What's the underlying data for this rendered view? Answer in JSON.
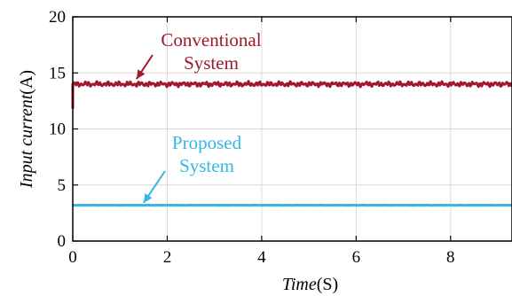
{
  "chart_data": {
    "type": "line",
    "title": "",
    "xlabel": {
      "var": "Time",
      "unit": "(S)"
    },
    "ylabel": {
      "var": "Input current",
      "unit": "(A)"
    },
    "xlim": [
      0,
      9.3
    ],
    "ylim": [
      0,
      20
    ],
    "xticks": [
      0,
      2,
      4,
      6,
      8
    ],
    "yticks": [
      0,
      5,
      10,
      15,
      20
    ],
    "grid": true,
    "legend": "none",
    "series": [
      {
        "key": "conventional",
        "color": "#a0182d",
        "mean": 14.0,
        "start": 11.8,
        "ripple": 0.22
      },
      {
        "key": "proposed",
        "color": "#35b6e6",
        "mean": 3.2,
        "start": 3.2,
        "ripple": 0.02
      }
    ],
    "annotations": [
      {
        "key": "conventional",
        "lines": [
          "Conventional",
          "System"
        ],
        "color": "#a0182d",
        "arrow_to": [
          1.35,
          14.45
        ]
      },
      {
        "key": "proposed",
        "lines": [
          "Proposed",
          "System"
        ],
        "color": "#35b6e6",
        "arrow_to": [
          1.5,
          3.4
        ]
      }
    ]
  }
}
